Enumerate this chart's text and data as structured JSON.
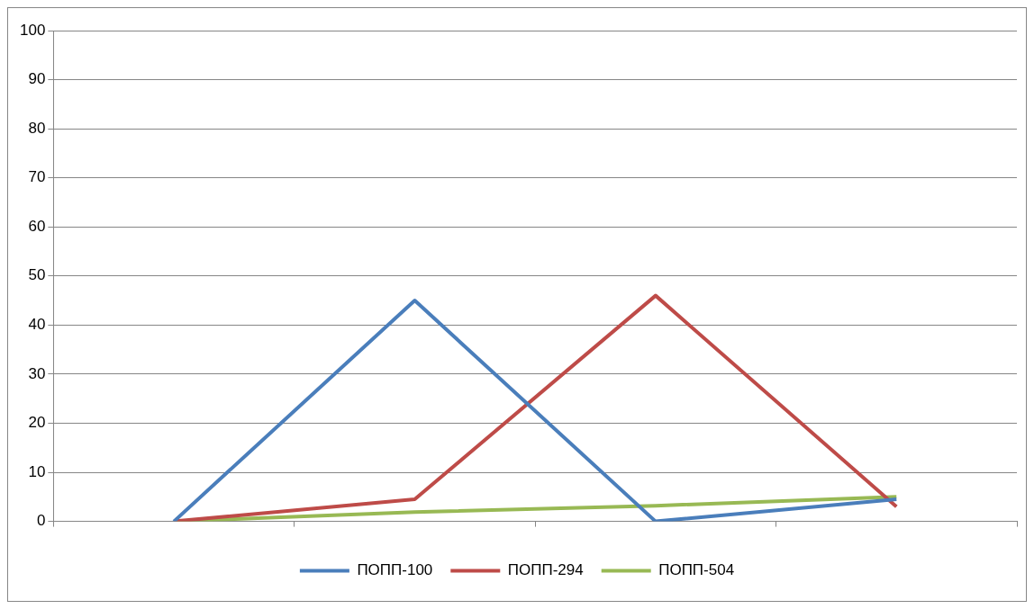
{
  "chart_data": {
    "type": "line",
    "categories": [
      null,
      null,
      null,
      null
    ],
    "series": [
      {
        "name": "ПОПП-100",
        "color": "#4a7ebb",
        "values": [
          0,
          45,
          0,
          4.5
        ]
      },
      {
        "name": "ПОПП-294",
        "color": "#be4b48",
        "values": [
          0,
          4.5,
          46,
          3
        ]
      },
      {
        "name": "ПОПП-504",
        "color": "#98b954",
        "values": [
          0,
          1.9,
          3.2,
          5
        ]
      }
    ],
    "ylim": [
      0,
      100
    ],
    "yticks": [
      0,
      10,
      20,
      30,
      40,
      50,
      60,
      70,
      80,
      90,
      100
    ],
    "grid": "y",
    "legend": "bottom",
    "marker": "none",
    "line_style": "solid"
  }
}
